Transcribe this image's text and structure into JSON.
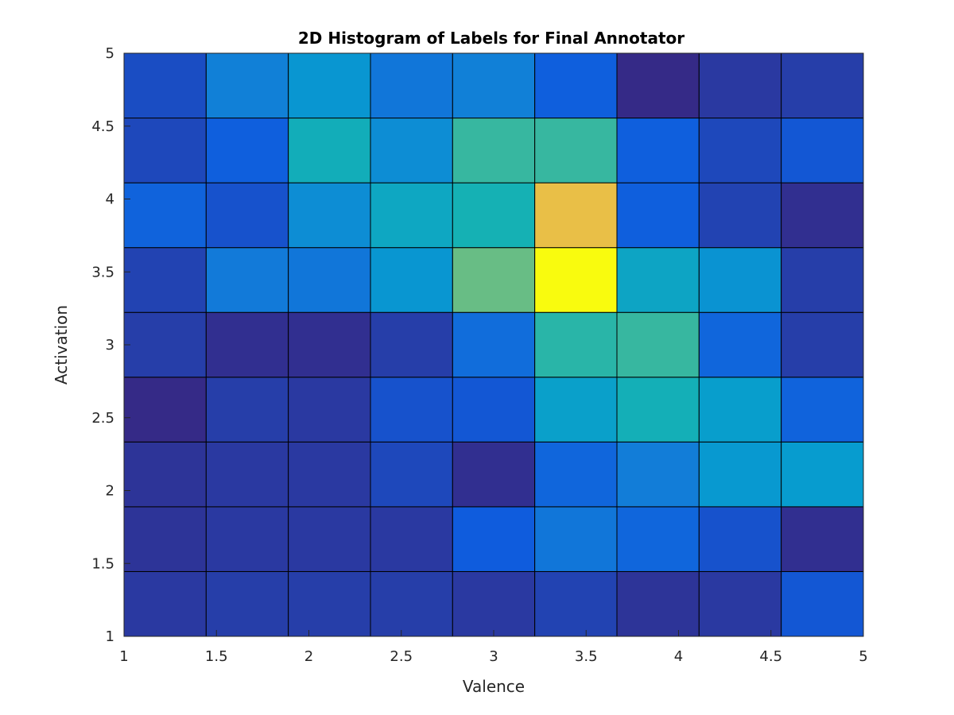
{
  "chart_data": {
    "type": "heatmap",
    "title": "2D Histogram of Labels for Final Annotator",
    "xlabel": "Valence",
    "ylabel": "Activation",
    "xlim": [
      1,
      5
    ],
    "ylim": [
      1,
      5
    ],
    "xticks": [
      "1",
      "1.5",
      "2",
      "2.5",
      "3",
      "3.5",
      "4",
      "4.5",
      "5"
    ],
    "yticks": [
      "1",
      "1.5",
      "2",
      "2.5",
      "3",
      "3.5",
      "4",
      "4.5",
      "5"
    ],
    "nx": 9,
    "ny": 9,
    "colormap": "parula",
    "grid": false,
    "cell_color_levels_bottom_to_top": [
      [
        0.03,
        0.04,
        0.04,
        0.04,
        0.03,
        0.05,
        0.02,
        0.03,
        0.09
      ],
      [
        0.02,
        0.03,
        0.03,
        0.03,
        0.1,
        0.18,
        0.13,
        0.08,
        0.01
      ],
      [
        0.02,
        0.03,
        0.03,
        0.06,
        0.01,
        0.13,
        0.2,
        0.29,
        0.3
      ],
      [
        0.0,
        0.04,
        0.03,
        0.08,
        0.09,
        0.32,
        0.39,
        0.31,
        0.12
      ],
      [
        0.04,
        0.01,
        0.01,
        0.04,
        0.15,
        0.43,
        0.45,
        0.13,
        0.04
      ],
      [
        0.05,
        0.19,
        0.18,
        0.28,
        0.52,
        1.0,
        0.34,
        0.27,
        0.04
      ],
      [
        0.12,
        0.08,
        0.25,
        0.35,
        0.4,
        0.73,
        0.11,
        0.05,
        0.01
      ],
      [
        0.06,
        0.11,
        0.38,
        0.25,
        0.45,
        0.45,
        0.11,
        0.06,
        0.09
      ],
      [
        0.07,
        0.21,
        0.28,
        0.18,
        0.21,
        0.11,
        0.0,
        0.03,
        0.04
      ]
    ]
  }
}
